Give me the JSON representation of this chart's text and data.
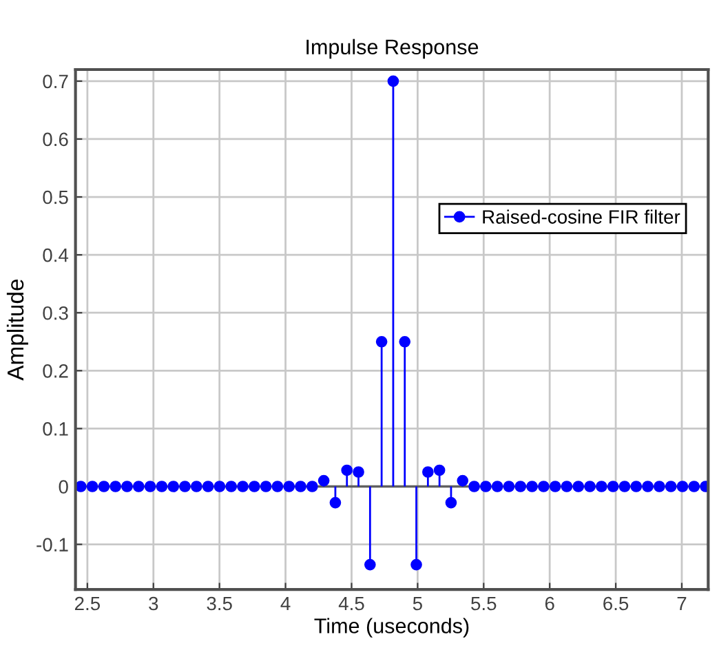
{
  "chart_data": {
    "type": "lollipop",
    "title": "Impulse Response",
    "xlabel": "Time (useconds)",
    "ylabel": "Amplitude",
    "x": [
      2.45,
      2.5376,
      2.6252,
      2.7128,
      2.8004,
      2.888,
      2.9756,
      3.0632,
      3.1508,
      3.2384,
      3.326,
      3.4136,
      3.5012,
      3.5888,
      3.6764,
      3.764,
      3.8516,
      3.9392,
      4.0268,
      4.1144,
      4.202,
      4.2896,
      4.3772,
      4.4648,
      4.5524,
      4.64,
      4.7276,
      4.8152,
      4.9028,
      4.9904,
      5.078,
      5.1656,
      5.2532,
      5.3408,
      5.4284,
      5.516,
      5.6036,
      5.6912,
      5.7788,
      5.8664,
      5.954,
      6.0416,
      6.1292,
      6.2168,
      6.3044,
      6.392,
      6.4796,
      6.5672,
      6.6548,
      6.7424,
      6.83,
      6.9176,
      7.0052,
      7.0928,
      7.1804
    ],
    "series": [
      {
        "name": "Raised-cosine FIR filter",
        "color": "#0000ff",
        "values": [
          0,
          0,
          0,
          0,
          0,
          0,
          0,
          0,
          0,
          0,
          0,
          0,
          0,
          0,
          0,
          0,
          0,
          0,
          0,
          0,
          0,
          0.01,
          -0.028,
          0.028,
          0.025,
          -0.135,
          0.25,
          0.7,
          0.25,
          -0.135,
          0.025,
          0.028,
          -0.028,
          0.01,
          0,
          0,
          0,
          0,
          0,
          0,
          0,
          0,
          0,
          0,
          0,
          0,
          0,
          0,
          0,
          0,
          0,
          0,
          0,
          0,
          0
        ]
      }
    ],
    "xlim": [
      2.41,
      7.2
    ],
    "ylim": [
      -0.178,
      0.72
    ],
    "xticks": [
      2.5,
      3,
      3.5,
      4,
      4.5,
      5,
      5.5,
      6,
      6.5,
      7
    ],
    "yticks": [
      -0.1,
      0,
      0.1,
      0.2,
      0.3,
      0.4,
      0.5,
      0.6,
      0.7
    ],
    "grid": true,
    "legend": "upper right",
    "marker": "circle"
  }
}
